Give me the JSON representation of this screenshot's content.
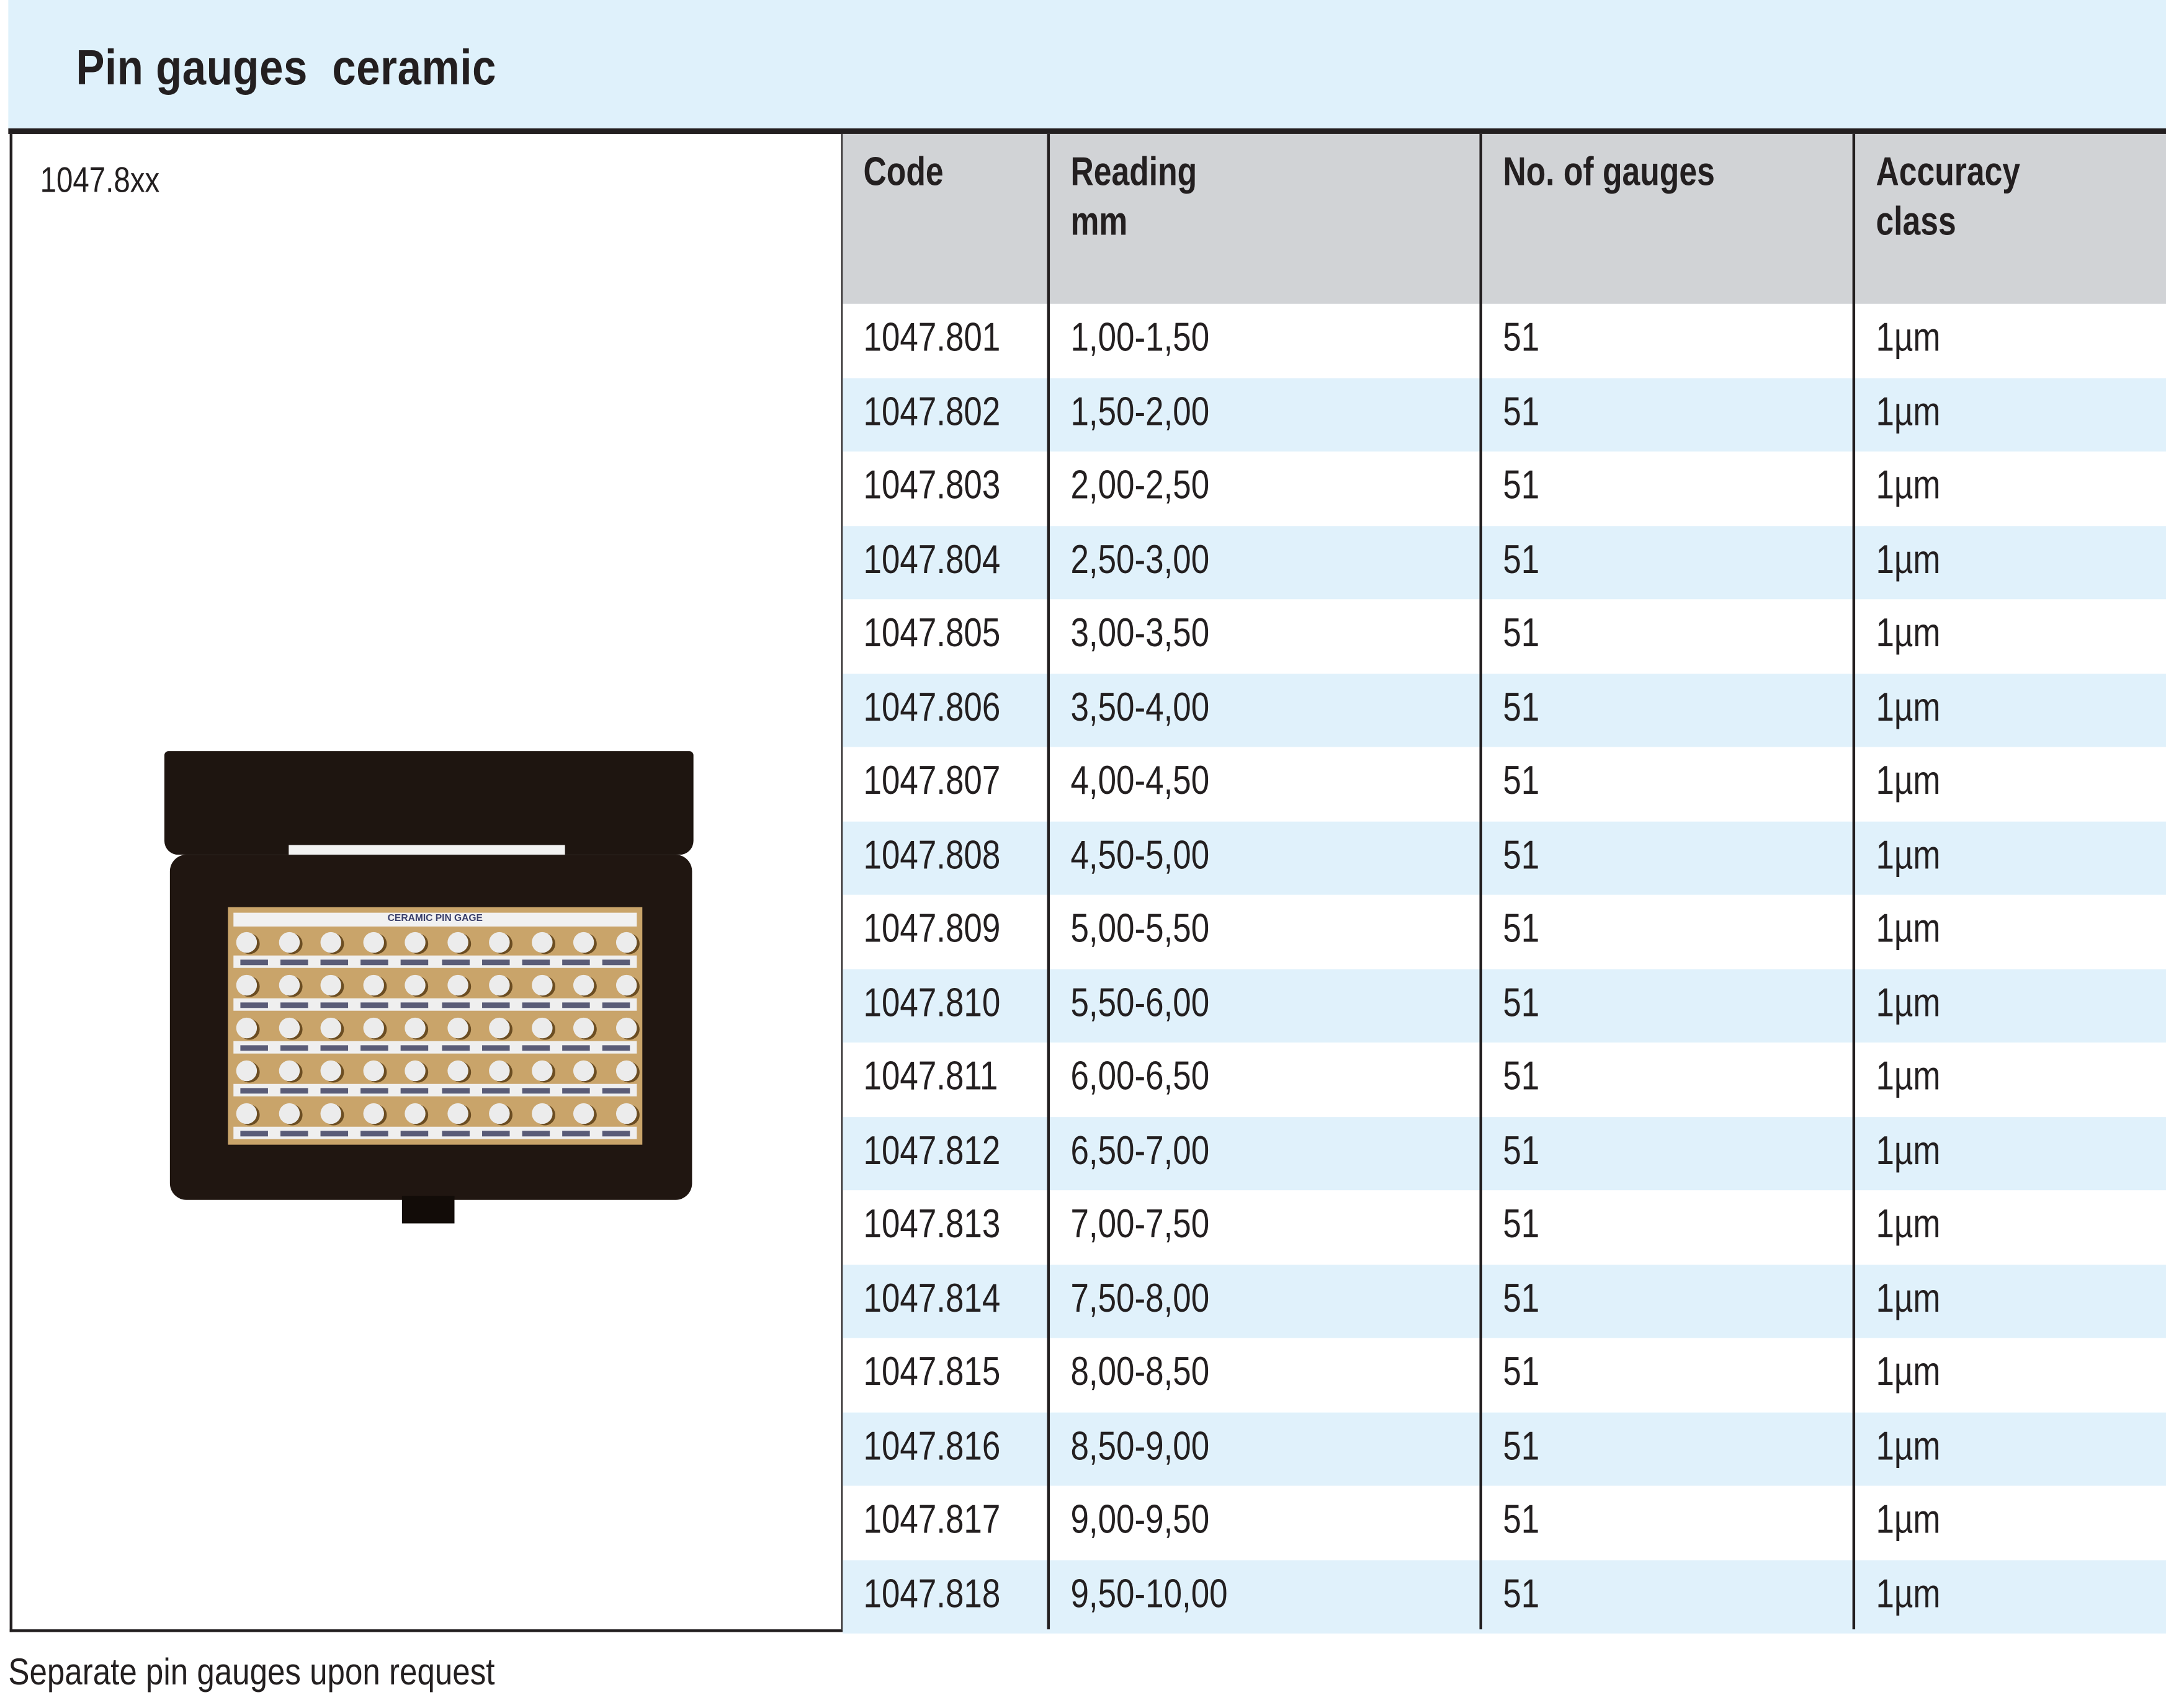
{
  "title": "Pin gauges  ceramic",
  "model": "1047.8xx",
  "photo": {
    "label": "CERAMIC PIN GAGE"
  },
  "columns": [
    {
      "label": "Code"
    },
    {
      "label": "Reading\nmm"
    },
    {
      "label": "No. of gauges"
    },
    {
      "label": "Accuracy\nclass"
    }
  ],
  "rows": [
    [
      "1047.801",
      "1,00-1,50",
      "51",
      "1µm"
    ],
    [
      "1047.802",
      "1,50-2,00",
      "51",
      "1µm"
    ],
    [
      "1047.803",
      "2,00-2,50",
      "51",
      "1µm"
    ],
    [
      "1047.804",
      "2,50-3,00",
      "51",
      "1µm"
    ],
    [
      "1047.805",
      "3,00-3,50",
      "51",
      "1µm"
    ],
    [
      "1047.806",
      "3,50-4,00",
      "51",
      "1µm"
    ],
    [
      "1047.807",
      "4,00-4,50",
      "51",
      "1µm"
    ],
    [
      "1047.808",
      "4,50-5,00",
      "51",
      "1µm"
    ],
    [
      "1047.809",
      "5,00-5,50",
      "51",
      "1µm"
    ],
    [
      "1047.810",
      "5,50-6,00",
      "51",
      "1µm"
    ],
    [
      "1047.811",
      "6,00-6,50",
      "51",
      "1µm"
    ],
    [
      "1047.812",
      "6,50-7,00",
      "51",
      "1µm"
    ],
    [
      "1047.813",
      "7,00-7,50",
      "51",
      "1µm"
    ],
    [
      "1047.814",
      "7,50-8,00",
      "51",
      "1µm"
    ],
    [
      "1047.815",
      "8,00-8,50",
      "51",
      "1µm"
    ],
    [
      "1047.816",
      "8,50-9,00",
      "51",
      "1µm"
    ],
    [
      "1047.817",
      "9,00-9,50",
      "51",
      "1µm"
    ],
    [
      "1047.818",
      "9,50-10,00",
      "51",
      "1µm"
    ]
  ],
  "footer": "Separate pin gauges upon request",
  "colors": {
    "header_band": "#dff1fb",
    "table_header": "#d1d3d6",
    "alt_row": "#e0f1fb",
    "text": "#231f20"
  }
}
